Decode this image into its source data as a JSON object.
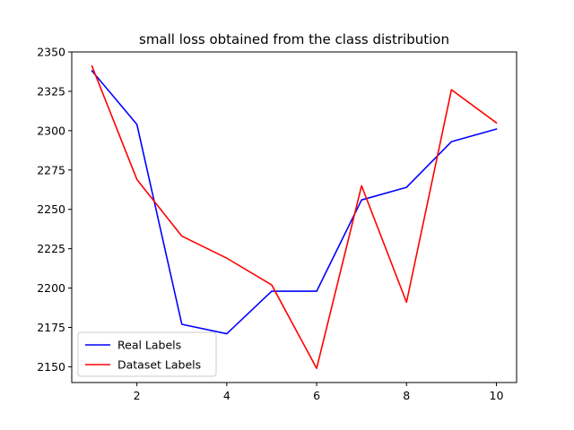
{
  "chart_data": {
    "type": "line",
    "title": "small loss obtained from the class distribution",
    "xlabel": "",
    "ylabel": "",
    "x": [
      1,
      2,
      3,
      4,
      5,
      6,
      7,
      8,
      9,
      10
    ],
    "xlim": [
      0.55,
      10.45
    ],
    "ylim": [
      2140,
      2350
    ],
    "xticks": [
      2,
      4,
      6,
      8,
      10
    ],
    "yticks": [
      2150,
      2175,
      2200,
      2225,
      2250,
      2275,
      2300,
      2325,
      2350
    ],
    "grid": false,
    "legend_position": "lower-left",
    "series": [
      {
        "name": "Real Labels",
        "color": "#0000ff",
        "values": [
          2338,
          2304,
          2177,
          2171,
          2198,
          2198,
          2256,
          2264,
          2293,
          2301
        ]
      },
      {
        "name": "Dataset Labels",
        "color": "#ff0000",
        "values": [
          2341,
          2269,
          2233,
          2219,
          2202,
          2149,
          2265,
          2191,
          2326,
          2305
        ]
      }
    ]
  }
}
